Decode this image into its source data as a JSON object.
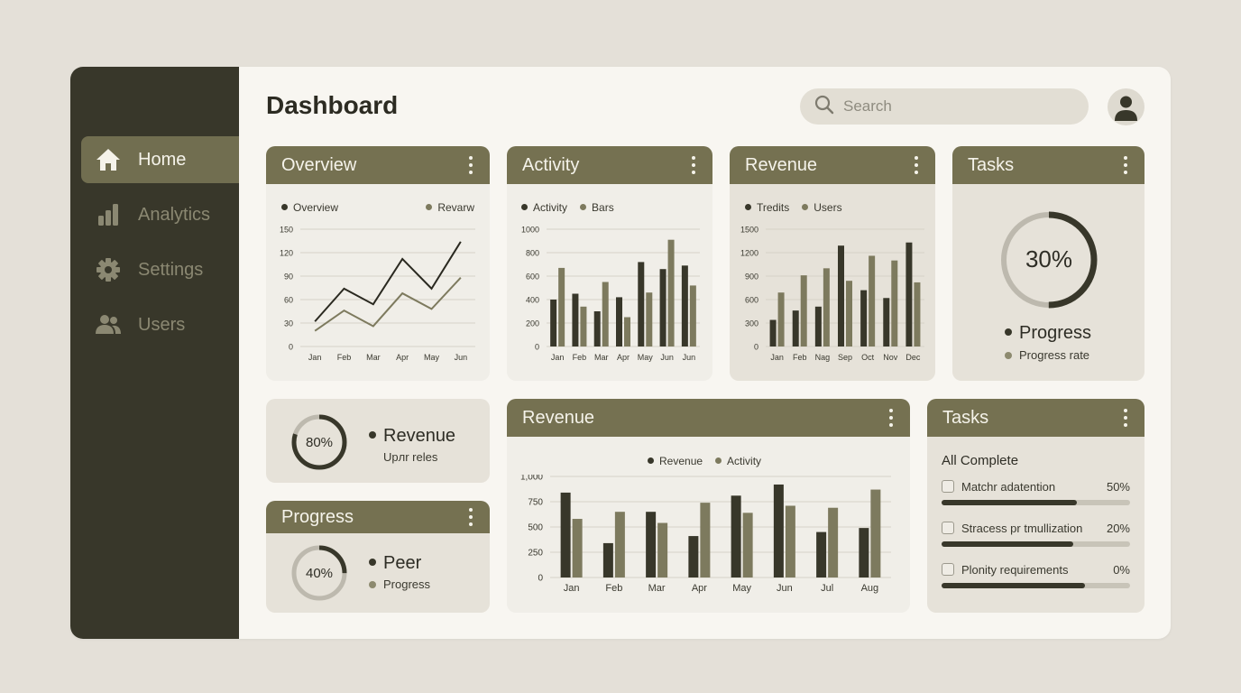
{
  "app": {
    "title": "Dashboard"
  },
  "colors": {
    "sidebar": "#38372a",
    "accent": "#757151",
    "dark_series": "#38372a",
    "light_series": "#7d7a5e",
    "background": "#e4e0d8"
  },
  "sidebar": {
    "items": [
      {
        "label": "Home",
        "icon": "home-icon",
        "active": true
      },
      {
        "label": "Analytics",
        "icon": "bar-chart-icon",
        "active": false
      },
      {
        "label": "Settings",
        "icon": "gear-icon",
        "active": false
      },
      {
        "label": "Users",
        "icon": "users-icon",
        "active": false
      }
    ]
  },
  "header": {
    "search_placeholder": "Search",
    "search_icon": "search-icon",
    "avatar_icon": "user-avatar-icon"
  },
  "cards": {
    "overview": {
      "title": "Overview",
      "legend": [
        "Overview",
        "Revarw"
      ]
    },
    "activity": {
      "title": "Activity",
      "legend": [
        "Activity",
        "Bars"
      ]
    },
    "revenue_top": {
      "title": "Revenue",
      "legend": [
        "Tredits",
        "Users"
      ]
    },
    "tasks_top": {
      "title": "Tasks",
      "percent": "30%",
      "legend": [
        "Progress",
        "Progress rate"
      ]
    },
    "revenue_small": {
      "percent": "80%",
      "label": "Revenue",
      "sublabel": "Upлr reles"
    },
    "progress": {
      "title": "Progress",
      "percent": "40%",
      "legend": [
        "Peer",
        "Progress"
      ]
    },
    "revenue_bottom": {
      "title": "Revenue",
      "legend": [
        "Revenue",
        "Activity"
      ]
    },
    "tasks_bottom": {
      "title": "Tasks",
      "subtitle": "All Complete",
      "items": [
        {
          "label": "Matchr adatention",
          "percent": "50%",
          "fill": 72
        },
        {
          "label": "Stracess pr tmullization",
          "percent": "20%",
          "fill": 70
        },
        {
          "label": "Plonity requirements",
          "percent": "0%",
          "fill": 76
        }
      ]
    }
  },
  "chart_data": [
    {
      "type": "line",
      "title": "Overview",
      "categories": [
        "Jan",
        "Feb",
        "Mar",
        "Apr",
        "May",
        "Jun"
      ],
      "series": [
        {
          "name": "Overview",
          "values": [
            32,
            74,
            54,
            112,
            74,
            134
          ]
        },
        {
          "name": "Revarw",
          "values": [
            20,
            46,
            26,
            68,
            48,
            88
          ]
        }
      ],
      "yticks": [
        0,
        30,
        60,
        90,
        120,
        150
      ],
      "ylim": [
        0,
        150
      ],
      "grid": true,
      "legend_position": "top"
    },
    {
      "type": "bar",
      "title": "Activity",
      "categories": [
        "Jan",
        "Feb",
        "Mar",
        "Apr",
        "May",
        "Jun",
        "Jun"
      ],
      "series": [
        {
          "name": "Activity",
          "values": [
            400,
            450,
            300,
            420,
            720,
            660,
            690
          ]
        },
        {
          "name": "Bars",
          "values": [
            670,
            340,
            550,
            250,
            460,
            910,
            520
          ]
        }
      ],
      "yticks": [
        0,
        200,
        400,
        600,
        800,
        1000
      ],
      "ylim": [
        0,
        1000
      ],
      "grid": true,
      "legend_position": "top"
    },
    {
      "type": "bar",
      "title": "Revenue",
      "categories": [
        "Jan",
        "Feb",
        "Nag",
        "Sep",
        "Oct",
        "Nov",
        "Dec"
      ],
      "series": [
        {
          "name": "Tredits",
          "values": [
            340,
            460,
            510,
            1290,
            720,
            620,
            1330
          ]
        },
        {
          "name": "Users",
          "values": [
            690,
            910,
            1000,
            840,
            1160,
            1100,
            820
          ]
        }
      ],
      "yticks": [
        0,
        300,
        600,
        900,
        1200,
        1500
      ],
      "ylim": [
        0,
        1500
      ],
      "grid": true,
      "legend_position": "top"
    },
    {
      "type": "pie",
      "title": "Tasks",
      "values": [
        30,
        70
      ],
      "labels": [
        "Progress",
        "Progress rate"
      ],
      "center_label": "30%"
    },
    {
      "type": "pie",
      "title": "Revenue",
      "values": [
        80,
        20
      ],
      "center_label": "80%"
    },
    {
      "type": "pie",
      "title": "Progress",
      "values": [
        40,
        60
      ],
      "labels": [
        "Peer",
        "Progress"
      ],
      "center_label": "40%"
    },
    {
      "type": "bar",
      "title": "Revenue",
      "categories": [
        "Jan",
        "Feb",
        "Mar",
        "Apr",
        "May",
        "Jun",
        "Jul",
        "Aug"
      ],
      "series": [
        {
          "name": "Revenue",
          "values": [
            840,
            340,
            650,
            410,
            810,
            920,
            450,
            490
          ]
        },
        {
          "name": "Activity",
          "values": [
            580,
            650,
            540,
            740,
            640,
            710,
            690,
            870
          ]
        }
      ],
      "yticks": [
        0,
        250,
        500,
        750,
        1000
      ],
      "ytick_labels": [
        "0",
        "250",
        "500",
        "750",
        "1,000"
      ],
      "ylim": [
        0,
        1000
      ],
      "grid": true,
      "legend_position": "top"
    }
  ]
}
